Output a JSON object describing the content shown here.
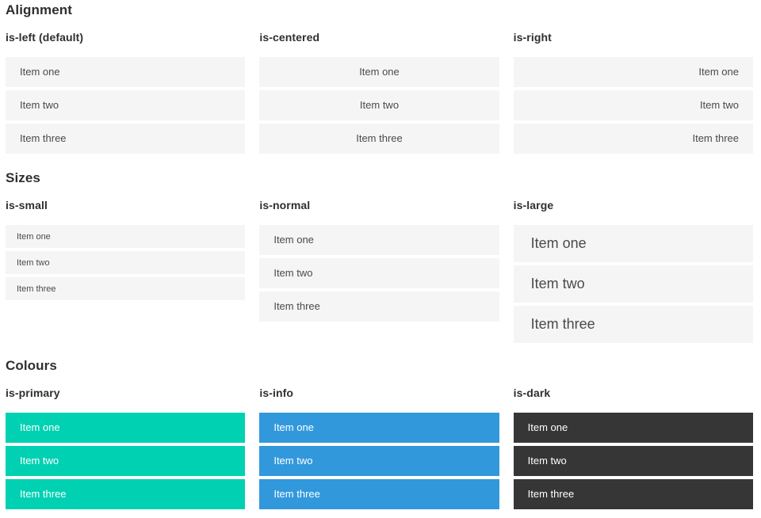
{
  "colors": {
    "primary": "#00d1b2",
    "info": "#3298dc",
    "dark": "#363636",
    "item_bg": "#f5f5f5",
    "item_text": "#4a4a4a",
    "heading_text": "#2f2f2f"
  },
  "sections": [
    {
      "title": "Alignment",
      "groups": [
        {
          "caption": "is-left (default)",
          "items": [
            "Item one",
            "Item two",
            "Item three"
          ]
        },
        {
          "caption": "is-centered",
          "items": [
            "Item one",
            "Item two",
            "Item three"
          ]
        },
        {
          "caption": "is-right",
          "items": [
            "Item one",
            "Item two",
            "Item three"
          ]
        }
      ]
    },
    {
      "title": "Sizes",
      "groups": [
        {
          "caption": "is-small",
          "items": [
            "Item one",
            "Item two",
            "Item three"
          ]
        },
        {
          "caption": "is-normal",
          "items": [
            "Item one",
            "Item two",
            "Item three"
          ]
        },
        {
          "caption": "is-large",
          "items": [
            "Item one",
            "Item two",
            "Item three"
          ]
        }
      ]
    },
    {
      "title": "Colours",
      "groups": [
        {
          "caption": "is-primary",
          "items": [
            "Item one",
            "Item two",
            "Item three"
          ]
        },
        {
          "caption": "is-info",
          "items": [
            "Item one",
            "Item two",
            "Item three"
          ]
        },
        {
          "caption": "is-dark",
          "items": [
            "Item one",
            "Item two",
            "Item three"
          ]
        }
      ]
    }
  ]
}
